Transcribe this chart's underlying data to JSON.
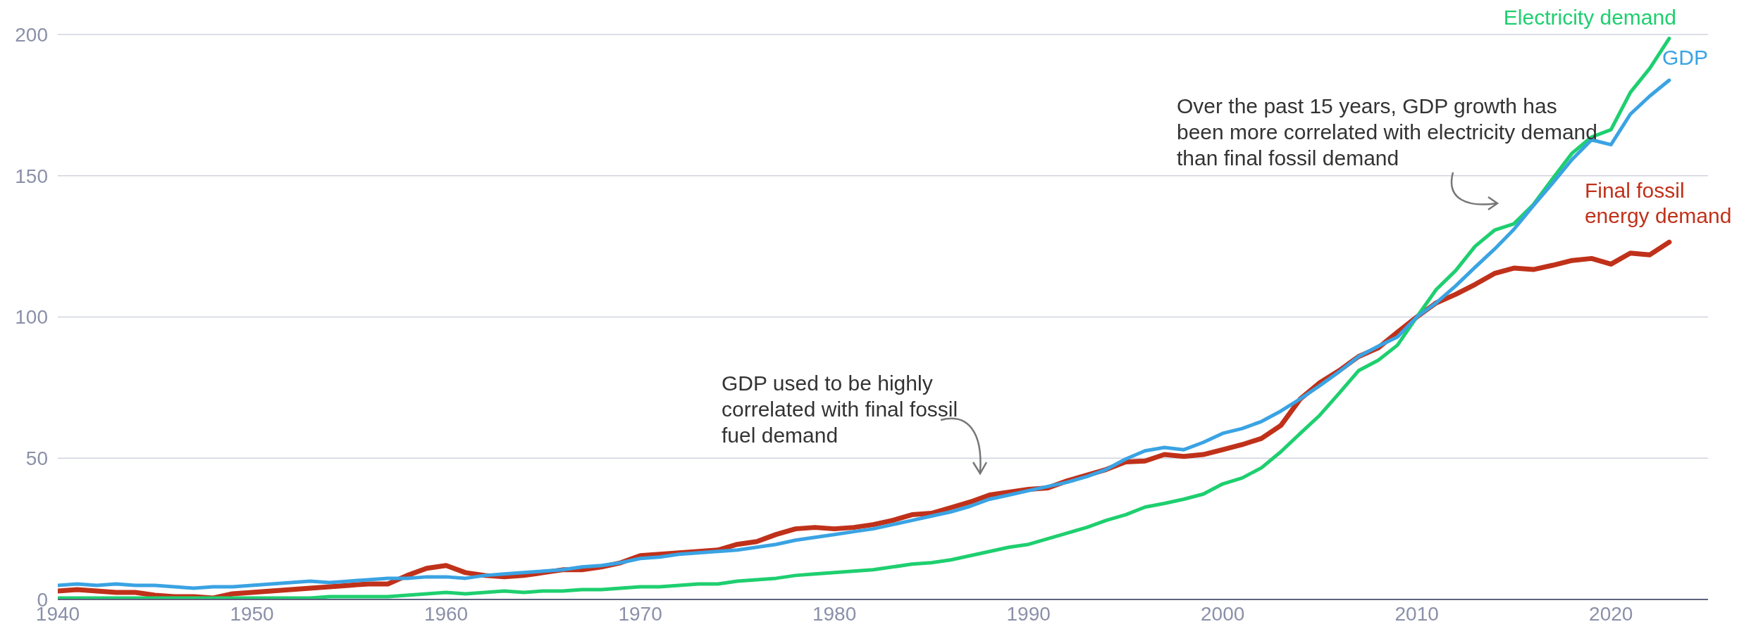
{
  "chart_data": {
    "type": "line",
    "x": [
      1940,
      1941,
      1942,
      1943,
      1944,
      1945,
      1946,
      1947,
      1948,
      1949,
      1950,
      1951,
      1952,
      1953,
      1954,
      1955,
      1956,
      1957,
      1958,
      1959,
      1960,
      1961,
      1962,
      1963,
      1964,
      1965,
      1966,
      1967,
      1968,
      1969,
      1970,
      1971,
      1972,
      1973,
      1974,
      1975,
      1976,
      1977,
      1978,
      1979,
      1980,
      1981,
      1982,
      1983,
      1984,
      1985,
      1986,
      1987,
      1988,
      1989,
      1990,
      1991,
      1992,
      1993,
      1994,
      1995,
      1996,
      1997,
      1998,
      1999,
      2000,
      2001,
      2002,
      2003,
      2004,
      2005,
      2006,
      2007,
      2008,
      2009,
      2010,
      2011,
      2012,
      2013,
      2014,
      2015,
      2016,
      2017,
      2018,
      2019,
      2020,
      2021,
      2022,
      2023
    ],
    "series": [
      {
        "name": "Final fossil energy demand",
        "color": "#c0311a",
        "values": [
          3,
          3.5,
          3,
          2.5,
          2.5,
          1.5,
          1,
          1,
          0.5,
          2,
          2.5,
          3,
          3.5,
          4,
          4.5,
          5,
          5.5,
          5.5,
          8.5,
          11,
          12,
          9.5,
          8.5,
          8,
          8.5,
          9.5,
          10.5,
          10.5,
          11.5,
          13,
          15.5,
          16,
          16.5,
          17,
          17.5,
          19.5,
          20.5,
          23,
          25,
          25.5,
          25,
          25.5,
          26.5,
          28,
          30,
          30.5,
          32.5,
          34.5,
          37,
          38,
          39,
          39.5,
          42,
          44,
          46,
          48.7,
          49,
          51.3,
          50.6,
          51.3,
          53,
          54.8,
          57,
          61.6,
          71,
          76.7,
          81,
          86,
          89,
          94.6,
          100,
          105,
          108,
          111.5,
          115.4,
          117.3,
          116.8,
          118.3,
          120,
          120.7,
          118.7,
          122.6,
          122,
          126.5
        ]
      },
      {
        "name": "Electricity demand",
        "color": "#1ecf6f",
        "values": [
          0.5,
          0.5,
          0.5,
          0.5,
          0.5,
          0.5,
          0.5,
          0.5,
          0.5,
          0.5,
          0.5,
          0.5,
          0.5,
          0.5,
          1,
          1,
          1,
          1,
          1.5,
          2,
          2.5,
          2,
          2.5,
          3,
          2.5,
          3,
          3,
          3.5,
          3.5,
          4,
          4.5,
          4.5,
          5,
          5.5,
          5.5,
          6.5,
          7,
          7.5,
          8.5,
          9,
          9.5,
          10,
          10.5,
          11.5,
          12.5,
          13,
          14,
          15.5,
          17,
          18.5,
          19.5,
          21.5,
          23.5,
          25.5,
          28,
          30,
          32.7,
          34,
          35.5,
          37.3,
          40.9,
          43,
          46.6,
          52.3,
          58.8,
          65.2,
          73,
          81,
          84.6,
          90,
          100,
          109.7,
          116.4,
          125,
          130.7,
          133,
          139.8,
          149,
          158,
          163.7,
          166.3,
          179.5,
          188,
          198.6
        ]
      },
      {
        "name": "GDP",
        "color": "#3aa3e3",
        "values": [
          5,
          5.5,
          5,
          5.5,
          5,
          5,
          4.5,
          4,
          4.5,
          4.5,
          5,
          5.5,
          6,
          6.5,
          6,
          6.5,
          7,
          7.5,
          7.5,
          8,
          8,
          7.5,
          8.5,
          9,
          9.5,
          10,
          10.5,
          11.5,
          12,
          13,
          14.5,
          15,
          16,
          16.5,
          17,
          17.5,
          18.5,
          19.5,
          21,
          22,
          23,
          24,
          25,
          26.5,
          28,
          29.5,
          31,
          33,
          35.5,
          37,
          38.5,
          40,
          41.5,
          43.5,
          46,
          49.7,
          52.6,
          53.8,
          53,
          55.6,
          58.8,
          60.5,
          63,
          66.7,
          71,
          75.7,
          80.6,
          86,
          89.6,
          92.9,
          100,
          105,
          111,
          117.6,
          124,
          131,
          139.4,
          147.4,
          155.8,
          162.7,
          161,
          171.8,
          178.2,
          183.8
        ]
      }
    ],
    "xlim": [
      1940,
      2025
    ],
    "xticks": [
      1940,
      1950,
      1960,
      1970,
      1980,
      1990,
      2000,
      2010,
      2020
    ],
    "ylim": [
      0,
      200
    ],
    "yticks": [
      0,
      50,
      100,
      150,
      200
    ],
    "grid": "y",
    "legend": false,
    "annotations": [
      "GDP used to be highly correlated with final fossil fuel demand",
      "Over the past 15 years, GDP growth has been more correlated with electricity demand than final fossil demand"
    ]
  }
}
